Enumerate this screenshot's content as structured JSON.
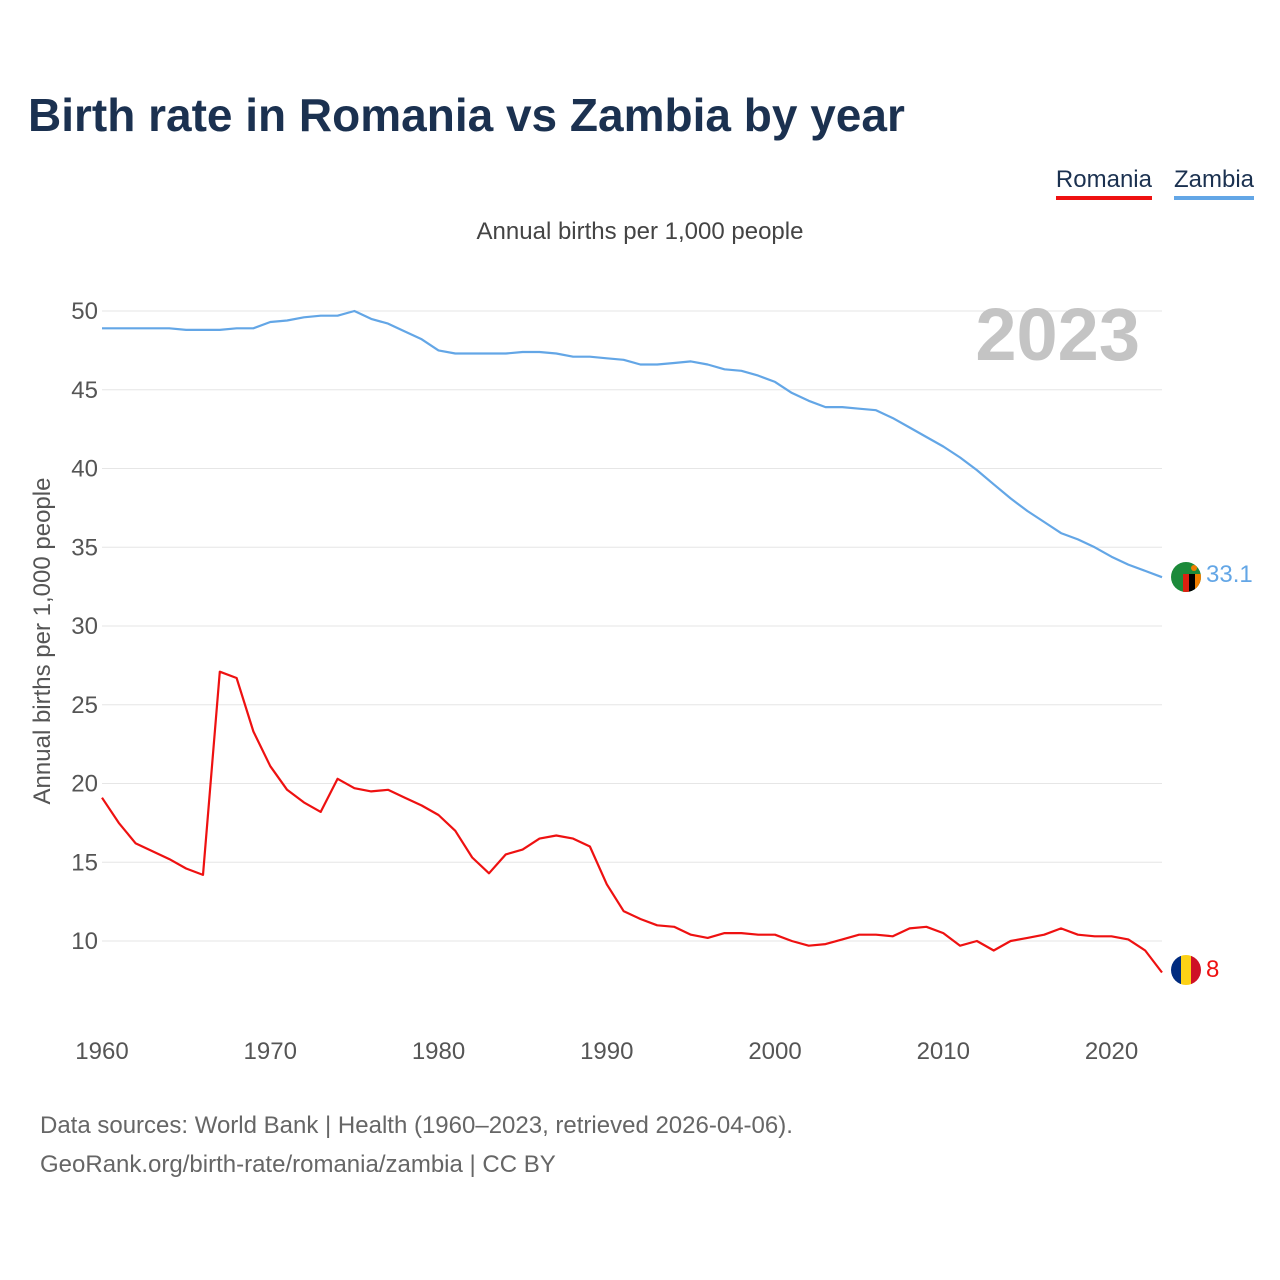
{
  "title": "Birth rate in Romania vs Zambia by year",
  "subtitle": "Annual births per 1,000 people",
  "legend": [
    {
      "label": "Romania",
      "color": "#ee1111"
    },
    {
      "label": "Zambia",
      "color": "#63a6e6"
    }
  ],
  "year_label": "2023",
  "footer": {
    "line1": "Data sources: World Bank | Health (1960–2023, retrieved 2026-04-06).",
    "line2": "GeoRank.org/birth-rate/romania/zambia | CC BY"
  },
  "chart_data": {
    "type": "line",
    "title": "Birth rate in Romania vs Zambia by year",
    "ylabel": "Annual births per 1,000 people",
    "xlabel": "",
    "xlim": [
      1960,
      2023
    ],
    "ylim": [
      5,
      52
    ],
    "x_ticks": [
      1960,
      1970,
      1980,
      1990,
      2000,
      2010,
      2020
    ],
    "y_ticks": [
      10,
      15,
      20,
      25,
      30,
      35,
      40,
      45,
      50
    ],
    "x": [
      1960,
      1961,
      1962,
      1963,
      1964,
      1965,
      1966,
      1967,
      1968,
      1969,
      1970,
      1971,
      1972,
      1973,
      1974,
      1975,
      1976,
      1977,
      1978,
      1979,
      1980,
      1981,
      1982,
      1983,
      1984,
      1985,
      1986,
      1987,
      1988,
      1989,
      1990,
      1991,
      1992,
      1993,
      1994,
      1995,
      1996,
      1997,
      1998,
      1999,
      2000,
      2001,
      2002,
      2003,
      2004,
      2005,
      2006,
      2007,
      2008,
      2009,
      2010,
      2011,
      2012,
      2013,
      2014,
      2015,
      2016,
      2017,
      2018,
      2019,
      2020,
      2021,
      2022,
      2023
    ],
    "series": [
      {
        "name": "Romania",
        "color": "#ee1111",
        "end_label": "8",
        "values": [
          19.1,
          17.5,
          16.2,
          15.7,
          15.2,
          14.6,
          14.2,
          27.1,
          26.7,
          23.3,
          21.1,
          19.6,
          18.8,
          18.2,
          20.3,
          19.7,
          19.5,
          19.6,
          19.1,
          18.6,
          18.0,
          17.0,
          15.3,
          14.3,
          15.5,
          15.8,
          16.5,
          16.7,
          16.5,
          16.0,
          13.6,
          11.9,
          11.4,
          11.0,
          10.9,
          10.4,
          10.2,
          10.5,
          10.5,
          10.4,
          10.4,
          10.0,
          9.7,
          9.8,
          10.1,
          10.4,
          10.4,
          10.3,
          10.8,
          10.9,
          10.5,
          9.7,
          10.0,
          9.4,
          10.0,
          10.2,
          10.4,
          10.8,
          10.4,
          10.3,
          10.3,
          10.1,
          9.4,
          8.0
        ]
      },
      {
        "name": "Zambia",
        "color": "#63a6e6",
        "end_label": "33.1",
        "values": [
          48.9,
          48.9,
          48.9,
          48.9,
          48.9,
          48.8,
          48.8,
          48.8,
          48.9,
          48.9,
          49.3,
          49.4,
          49.6,
          49.7,
          49.7,
          50.0,
          49.5,
          49.2,
          48.7,
          48.2,
          47.5,
          47.3,
          47.3,
          47.3,
          47.3,
          47.4,
          47.4,
          47.3,
          47.1,
          47.1,
          47.0,
          46.9,
          46.6,
          46.6,
          46.7,
          46.8,
          46.6,
          46.3,
          46.2,
          45.9,
          45.5,
          44.8,
          44.3,
          43.9,
          43.9,
          43.8,
          43.7,
          43.2,
          42.6,
          42.0,
          41.4,
          40.7,
          39.9,
          39.0,
          38.1,
          37.3,
          36.6,
          35.9,
          35.5,
          35.0,
          34.4,
          33.9,
          33.5,
          33.1
        ]
      }
    ]
  }
}
